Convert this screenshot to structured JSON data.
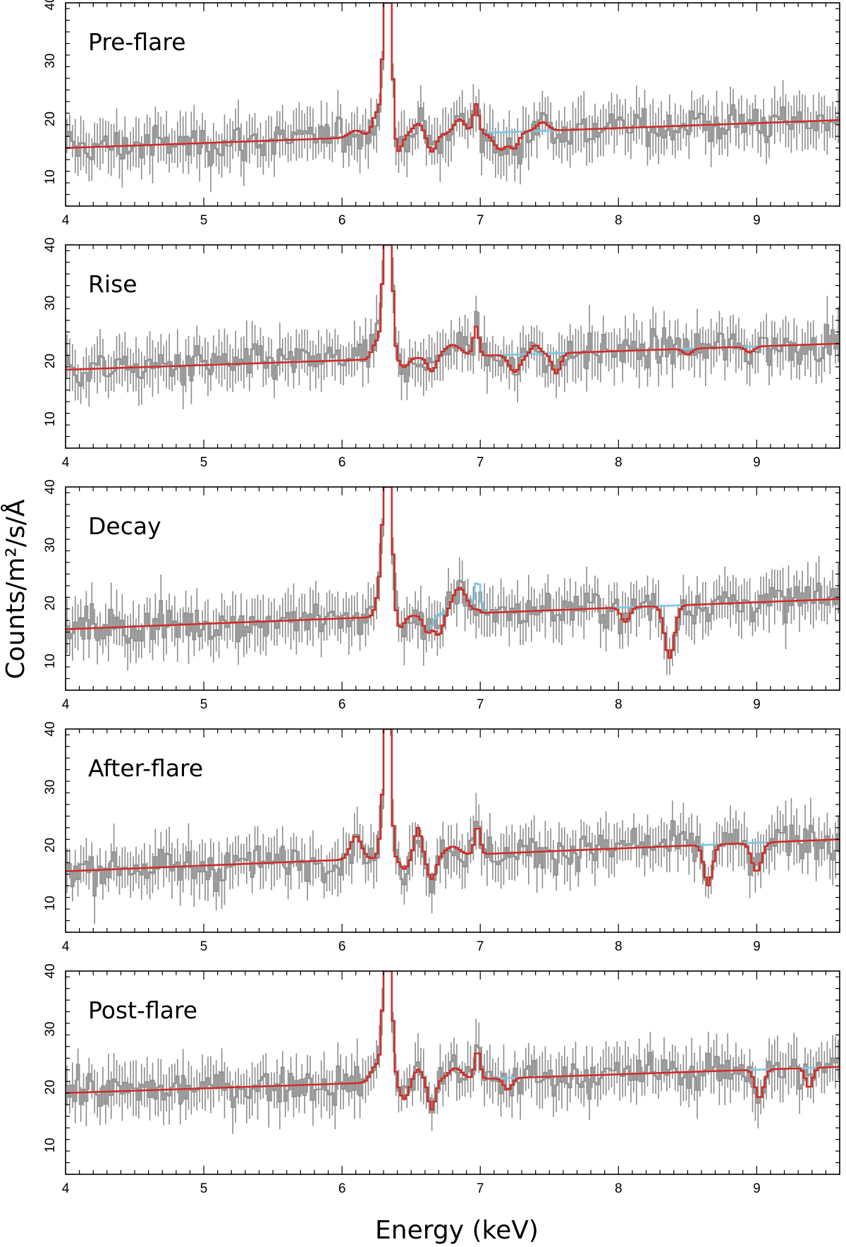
{
  "chart_data": {
    "type": "line",
    "x_label": "Energy (keV)",
    "y_label": "Counts/m²/s/Å",
    "xlim": [
      4,
      9.6
    ],
    "ylim": [
      5,
      40
    ],
    "x_ticks": [
      4,
      5,
      6,
      7,
      8,
      9
    ],
    "y_ticks": [
      10,
      20,
      30,
      40
    ],
    "series_colors": {
      "data": "#8c8c8c",
      "continuum_model": "#7ec8e3",
      "absorption_model": "#d7261e"
    },
    "panels": [
      {
        "title": "Pre-flare",
        "cont_start": 15,
        "cont_end": 19.8,
        "lines": [
          {
            "e": 6.1,
            "h": 1.2,
            "w": 0.05
          },
          {
            "e": 6.33,
            "h": 42,
            "w": 0.025
          },
          {
            "e": 6.25,
            "h": 4,
            "w": 0.03
          },
          {
            "e": 6.4,
            "h": -3,
            "w": 0.03
          },
          {
            "e": 6.55,
            "h": 2,
            "w": 0.04
          },
          {
            "e": 6.65,
            "h": -3,
            "w": 0.03
          },
          {
            "e": 6.85,
            "h": 2.5,
            "w": 0.04
          },
          {
            "e": 6.97,
            "h": 5,
            "w": 0.02
          }
        ],
        "abs_lines": [
          {
            "e": 7.15,
            "h": -3,
            "w": 0.05
          },
          {
            "e": 7.25,
            "h": -2.5,
            "w": 0.03
          },
          {
            "e": 7.45,
            "h": 1.5,
            "w": 0.04
          }
        ]
      },
      {
        "title": "Rise",
        "cont_start": 18.5,
        "cont_end": 23,
        "lines": [
          {
            "e": 6.25,
            "h": 3,
            "w": 0.03
          },
          {
            "e": 6.33,
            "h": 42,
            "w": 0.025
          },
          {
            "e": 6.45,
            "h": -1.5,
            "w": 0.03
          },
          {
            "e": 6.65,
            "h": -2.5,
            "w": 0.03
          },
          {
            "e": 6.8,
            "h": 2,
            "w": 0.06
          },
          {
            "e": 6.97,
            "h": 5,
            "w": 0.02
          }
        ],
        "abs_lines": [
          {
            "e": 7.25,
            "h": -3,
            "w": 0.04
          },
          {
            "e": 7.55,
            "h": -3.5,
            "w": 0.03
          },
          {
            "e": 7.4,
            "h": 1.5,
            "w": 0.03
          },
          {
            "e": 8.5,
            "h": -1,
            "w": 0.03
          },
          {
            "e": 8.95,
            "h": -1,
            "w": 0.03
          }
        ]
      },
      {
        "title": "Decay",
        "cont_start": 15.5,
        "cont_end": 20.7,
        "lines": [
          {
            "e": 6.28,
            "h": 5,
            "w": 0.03
          },
          {
            "e": 6.33,
            "h": 40,
            "w": 0.025
          },
          {
            "e": 6.42,
            "h": -2,
            "w": 0.03
          },
          {
            "e": 6.62,
            "h": -3,
            "w": 0.03
          },
          {
            "e": 6.85,
            "h": 4.5,
            "w": 0.05
          },
          {
            "e": 6.98,
            "h": 5.5,
            "w": 0.02
          }
        ],
        "abs_lines": [
          {
            "e": 6.7,
            "h": -3.5,
            "w": 0.03
          },
          {
            "e": 6.98,
            "h": -5,
            "w": 0.02
          },
          {
            "e": 8.05,
            "h": -2.5,
            "w": 0.03
          },
          {
            "e": 8.37,
            "h": -9,
            "w": 0.035
          }
        ]
      },
      {
        "title": "After-flare",
        "cont_start": 15.5,
        "cont_end": 21,
        "lines": [
          {
            "e": 6.1,
            "h": 4,
            "w": 0.04
          },
          {
            "e": 6.3,
            "h": 6,
            "w": 0.025
          },
          {
            "e": 6.33,
            "h": 40,
            "w": 0.02
          },
          {
            "e": 6.45,
            "h": -2,
            "w": 0.03
          },
          {
            "e": 6.55,
            "h": 5,
            "w": 0.025
          },
          {
            "e": 6.65,
            "h": -4,
            "w": 0.03
          },
          {
            "e": 6.8,
            "h": 1.5,
            "w": 0.05
          },
          {
            "e": 6.98,
            "h": 5,
            "w": 0.02
          }
        ],
        "abs_lines": [
          {
            "e": 8.65,
            "h": -7,
            "w": 0.03
          },
          {
            "e": 9.0,
            "h": -5,
            "w": 0.035
          }
        ]
      },
      {
        "title": "Post-flare",
        "cont_start": 19,
        "cont_end": 23.5,
        "lines": [
          {
            "e": 6.25,
            "h": 3,
            "w": 0.04
          },
          {
            "e": 6.33,
            "h": 38,
            "w": 0.025
          },
          {
            "e": 6.45,
            "h": -3,
            "w": 0.03
          },
          {
            "e": 6.55,
            "h": 2,
            "w": 0.03
          },
          {
            "e": 6.65,
            "h": -5,
            "w": 0.025
          },
          {
            "e": 6.82,
            "h": 2,
            "w": 0.05
          },
          {
            "e": 6.98,
            "h": 5,
            "w": 0.02
          }
        ],
        "abs_lines": [
          {
            "e": 7.2,
            "h": -2,
            "w": 0.03
          },
          {
            "e": 9.02,
            "h": -5,
            "w": 0.03
          },
          {
            "e": 9.38,
            "h": -3.5,
            "w": 0.025
          }
        ]
      }
    ]
  }
}
